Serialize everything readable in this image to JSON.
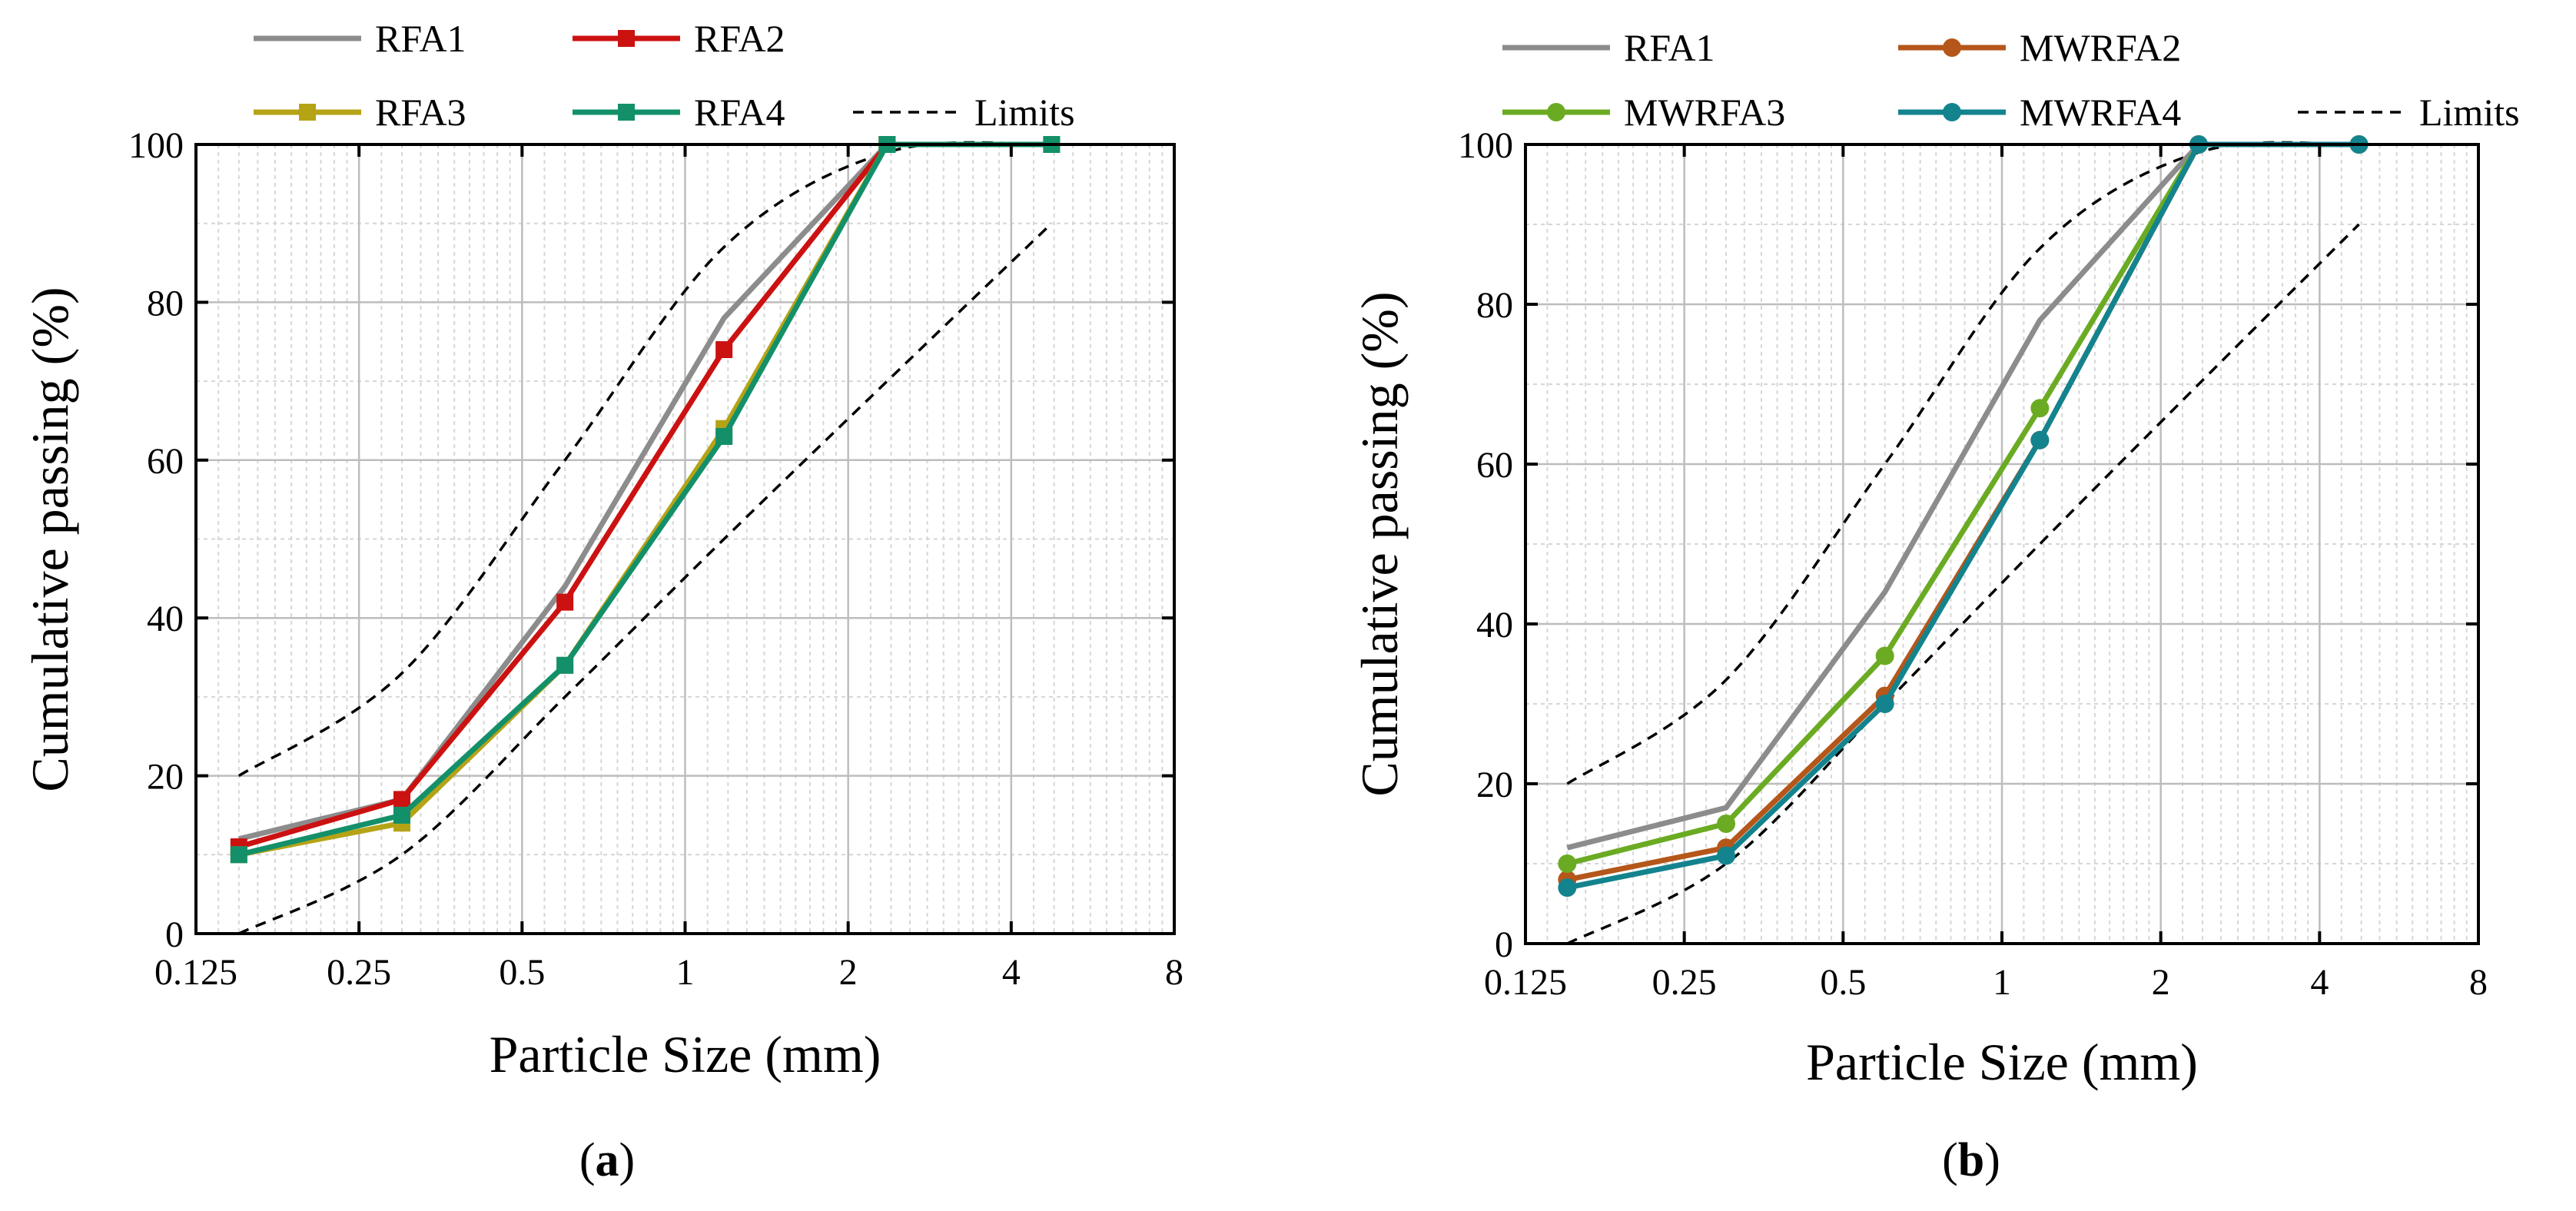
{
  "chart_data": [
    {
      "type": "line",
      "panel_label": "a",
      "xlabel": "Particle Size (mm)",
      "ylabel": "Cumulative passing (%)",
      "xscale": "log2",
      "xlim": [
        0.125,
        8
      ],
      "ylim": [
        0,
        100
      ],
      "xticks": [
        0.125,
        0.25,
        0.5,
        1,
        2,
        4,
        8
      ],
      "xtick_labels": [
        "0.125",
        "0.25",
        "0.5",
        "1",
        "2",
        "4",
        "8"
      ],
      "yticks": [
        0,
        20,
        40,
        60,
        80,
        100
      ],
      "ytick_labels": [
        "0",
        "20",
        "40",
        "60",
        "80",
        "100"
      ],
      "grid": true,
      "legend_position": "top",
      "x": [
        0.15,
        0.3,
        0.6,
        1.18,
        2.36,
        4.75
      ],
      "series": [
        {
          "name": "RFA1",
          "color": "#8c8c8c",
          "marker": "none",
          "values": [
            12,
            17,
            44,
            78,
            100,
            100
          ]
        },
        {
          "name": "RFA2",
          "color": "#cc1111",
          "marker": "square",
          "values": [
            11,
            17,
            42,
            74,
            100,
            100
          ]
        },
        {
          "name": "RFA3",
          "color": "#b5a316",
          "marker": "square",
          "values": [
            10,
            14,
            34,
            64,
            100,
            100
          ]
        },
        {
          "name": "RFA4",
          "color": "#13906a",
          "marker": "square",
          "values": [
            10,
            15,
            34,
            63,
            100,
            100
          ]
        }
      ],
      "limits": {
        "name": "Limits",
        "color": "#000000",
        "style": "dashed",
        "upper": {
          "x": [
            0.15,
            0.3,
            0.6,
            1.18,
            2.36,
            4.75
          ],
          "values": [
            20,
            33,
            60,
            87,
            99,
            100
          ]
        },
        "lower": {
          "x": [
            0.15,
            0.3,
            0.6,
            1.18,
            2.36,
            4.75
          ],
          "values": [
            0,
            10,
            30,
            50,
            70,
            90
          ]
        }
      },
      "legend_entries": [
        "RFA1",
        "RFA2",
        "RFA3",
        "RFA4",
        "Limits"
      ]
    },
    {
      "type": "line",
      "panel_label": "b",
      "xlabel": "Particle Size (mm)",
      "ylabel": "Cumulative passing (%)",
      "xscale": "log2",
      "xlim": [
        0.125,
        8
      ],
      "ylim": [
        0,
        100
      ],
      "xticks": [
        0.125,
        0.25,
        0.5,
        1,
        2,
        4,
        8
      ],
      "xtick_labels": [
        "0.125",
        "0.25",
        "0.5",
        "1",
        "2",
        "4",
        "8"
      ],
      "yticks": [
        0,
        20,
        40,
        60,
        80,
        100
      ],
      "ytick_labels": [
        "0",
        "20",
        "40",
        "60",
        "80",
        "100"
      ],
      "grid": true,
      "legend_position": "top",
      "x": [
        0.15,
        0.3,
        0.6,
        1.18,
        2.36,
        4.75
      ],
      "series": [
        {
          "name": "RFA1",
          "color": "#8c8c8c",
          "marker": "none",
          "values": [
            12,
            17,
            44,
            78,
            100,
            100
          ]
        },
        {
          "name": "MWRFA2",
          "color": "#b5561a",
          "marker": "circle",
          "values": [
            8,
            12,
            31,
            63,
            100,
            100
          ]
        },
        {
          "name": "MWRFA3",
          "color": "#6bab23",
          "marker": "circle",
          "values": [
            10,
            15,
            36,
            67,
            100,
            100
          ]
        },
        {
          "name": "MWRFA4",
          "color": "#13838e",
          "marker": "circle",
          "values": [
            7,
            11,
            30,
            63,
            100,
            100
          ]
        }
      ],
      "limits": {
        "name": "Limits",
        "color": "#000000",
        "style": "dashed",
        "upper": {
          "x": [
            0.15,
            0.3,
            0.6,
            1.18,
            2.36,
            4.75
          ],
          "values": [
            20,
            33,
            60,
            87,
            99,
            100
          ]
        },
        "lower": {
          "x": [
            0.15,
            0.3,
            0.6,
            1.18,
            2.36,
            4.75
          ],
          "values": [
            0,
            10,
            30,
            50,
            70,
            90
          ]
        }
      },
      "legend_entries": [
        "RFA1",
        "MWRFA2",
        "MWRFA3",
        "MWRFA4",
        "Limits"
      ]
    }
  ]
}
